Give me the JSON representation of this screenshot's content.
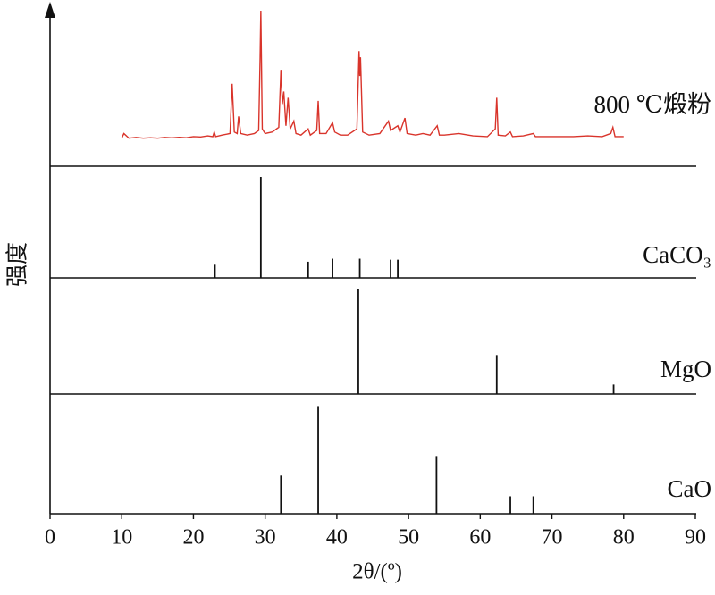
{
  "chart_data": {
    "type": "xrd",
    "xlabel": "2θ/(º)",
    "ylabel": "强度",
    "xlim": [
      0,
      90
    ],
    "xticks": [
      0,
      10,
      20,
      30,
      40,
      50,
      60,
      70,
      80,
      90
    ],
    "ylim": [
      0,
      100
    ],
    "series": [
      {
        "name": "800 ℃煅粉",
        "color": "#d9342b",
        "style": "line",
        "x": [
          10,
          10.3,
          11,
          12,
          13,
          14,
          15,
          16,
          17,
          18,
          19,
          20,
          21,
          22,
          22.7,
          22.9,
          23.1,
          24,
          25.1,
          25.4,
          25.7,
          26.1,
          26.3,
          26.6,
          27.5,
          28.5,
          29.1,
          29.3,
          29.4,
          29.6,
          30,
          31,
          31.9,
          32.2,
          32.4,
          32.6,
          32.9,
          33.2,
          33.5,
          34,
          34.3,
          35,
          36,
          36.3,
          37.2,
          37.4,
          37.6,
          38.5,
          39.4,
          39.7,
          40.5,
          41.5,
          42.8,
          43.1,
          43.2,
          43.3,
          43.6,
          44.5,
          46,
          47.2,
          47.5,
          48.5,
          48.8,
          49.5,
          49.8,
          51,
          52,
          53,
          54,
          54.3,
          55,
          57,
          59,
          61,
          62.1,
          62.3,
          62.5,
          63.5,
          64.2,
          64.5,
          66,
          67.4,
          67.7,
          69,
          71,
          73,
          75,
          77,
          78.2,
          78.5,
          78.8,
          80
        ],
        "values": [
          18,
          21,
          18,
          18.5,
          18,
          18.3,
          18,
          18.5,
          18.2,
          18.6,
          18.3,
          19,
          18.8,
          19.5,
          19,
          22,
          19,
          20,
          21,
          53,
          22,
          21,
          32,
          21,
          20,
          21,
          23,
          70,
          100,
          24,
          21,
          22,
          25,
          62,
          40,
          48,
          26,
          44,
          24,
          29,
          21,
          20,
          24,
          20,
          23,
          42,
          21,
          21,
          28,
          22,
          20,
          20,
          24,
          74,
          58,
          70,
          22,
          20,
          21,
          29,
          23,
          26,
          22,
          31,
          21,
          20,
          21,
          20,
          26,
          20,
          20,
          21,
          19.5,
          19,
          24,
          44,
          20,
          19.5,
          22,
          19,
          19.5,
          21,
          19,
          19,
          19,
          19,
          19.5,
          19,
          21,
          25,
          19,
          19
        ]
      },
      {
        "name": "CaCO₃",
        "color": "#111111",
        "style": "stick",
        "x": [
          23.0,
          29.4,
          36.0,
          39.4,
          43.2,
          47.5,
          48.5
        ],
        "values": [
          13,
          100,
          16,
          19,
          19,
          18,
          18
        ]
      },
      {
        "name": "MgO",
        "color": "#111111",
        "style": "stick",
        "x": [
          43.0,
          62.3,
          78.6
        ],
        "values": [
          100,
          37,
          9
        ]
      },
      {
        "name": "CaO",
        "color": "#111111",
        "style": "stick",
        "x": [
          32.2,
          37.4,
          53.9,
          64.2,
          67.4
        ],
        "values": [
          35,
          98,
          53,
          16,
          16
        ]
      }
    ]
  }
}
